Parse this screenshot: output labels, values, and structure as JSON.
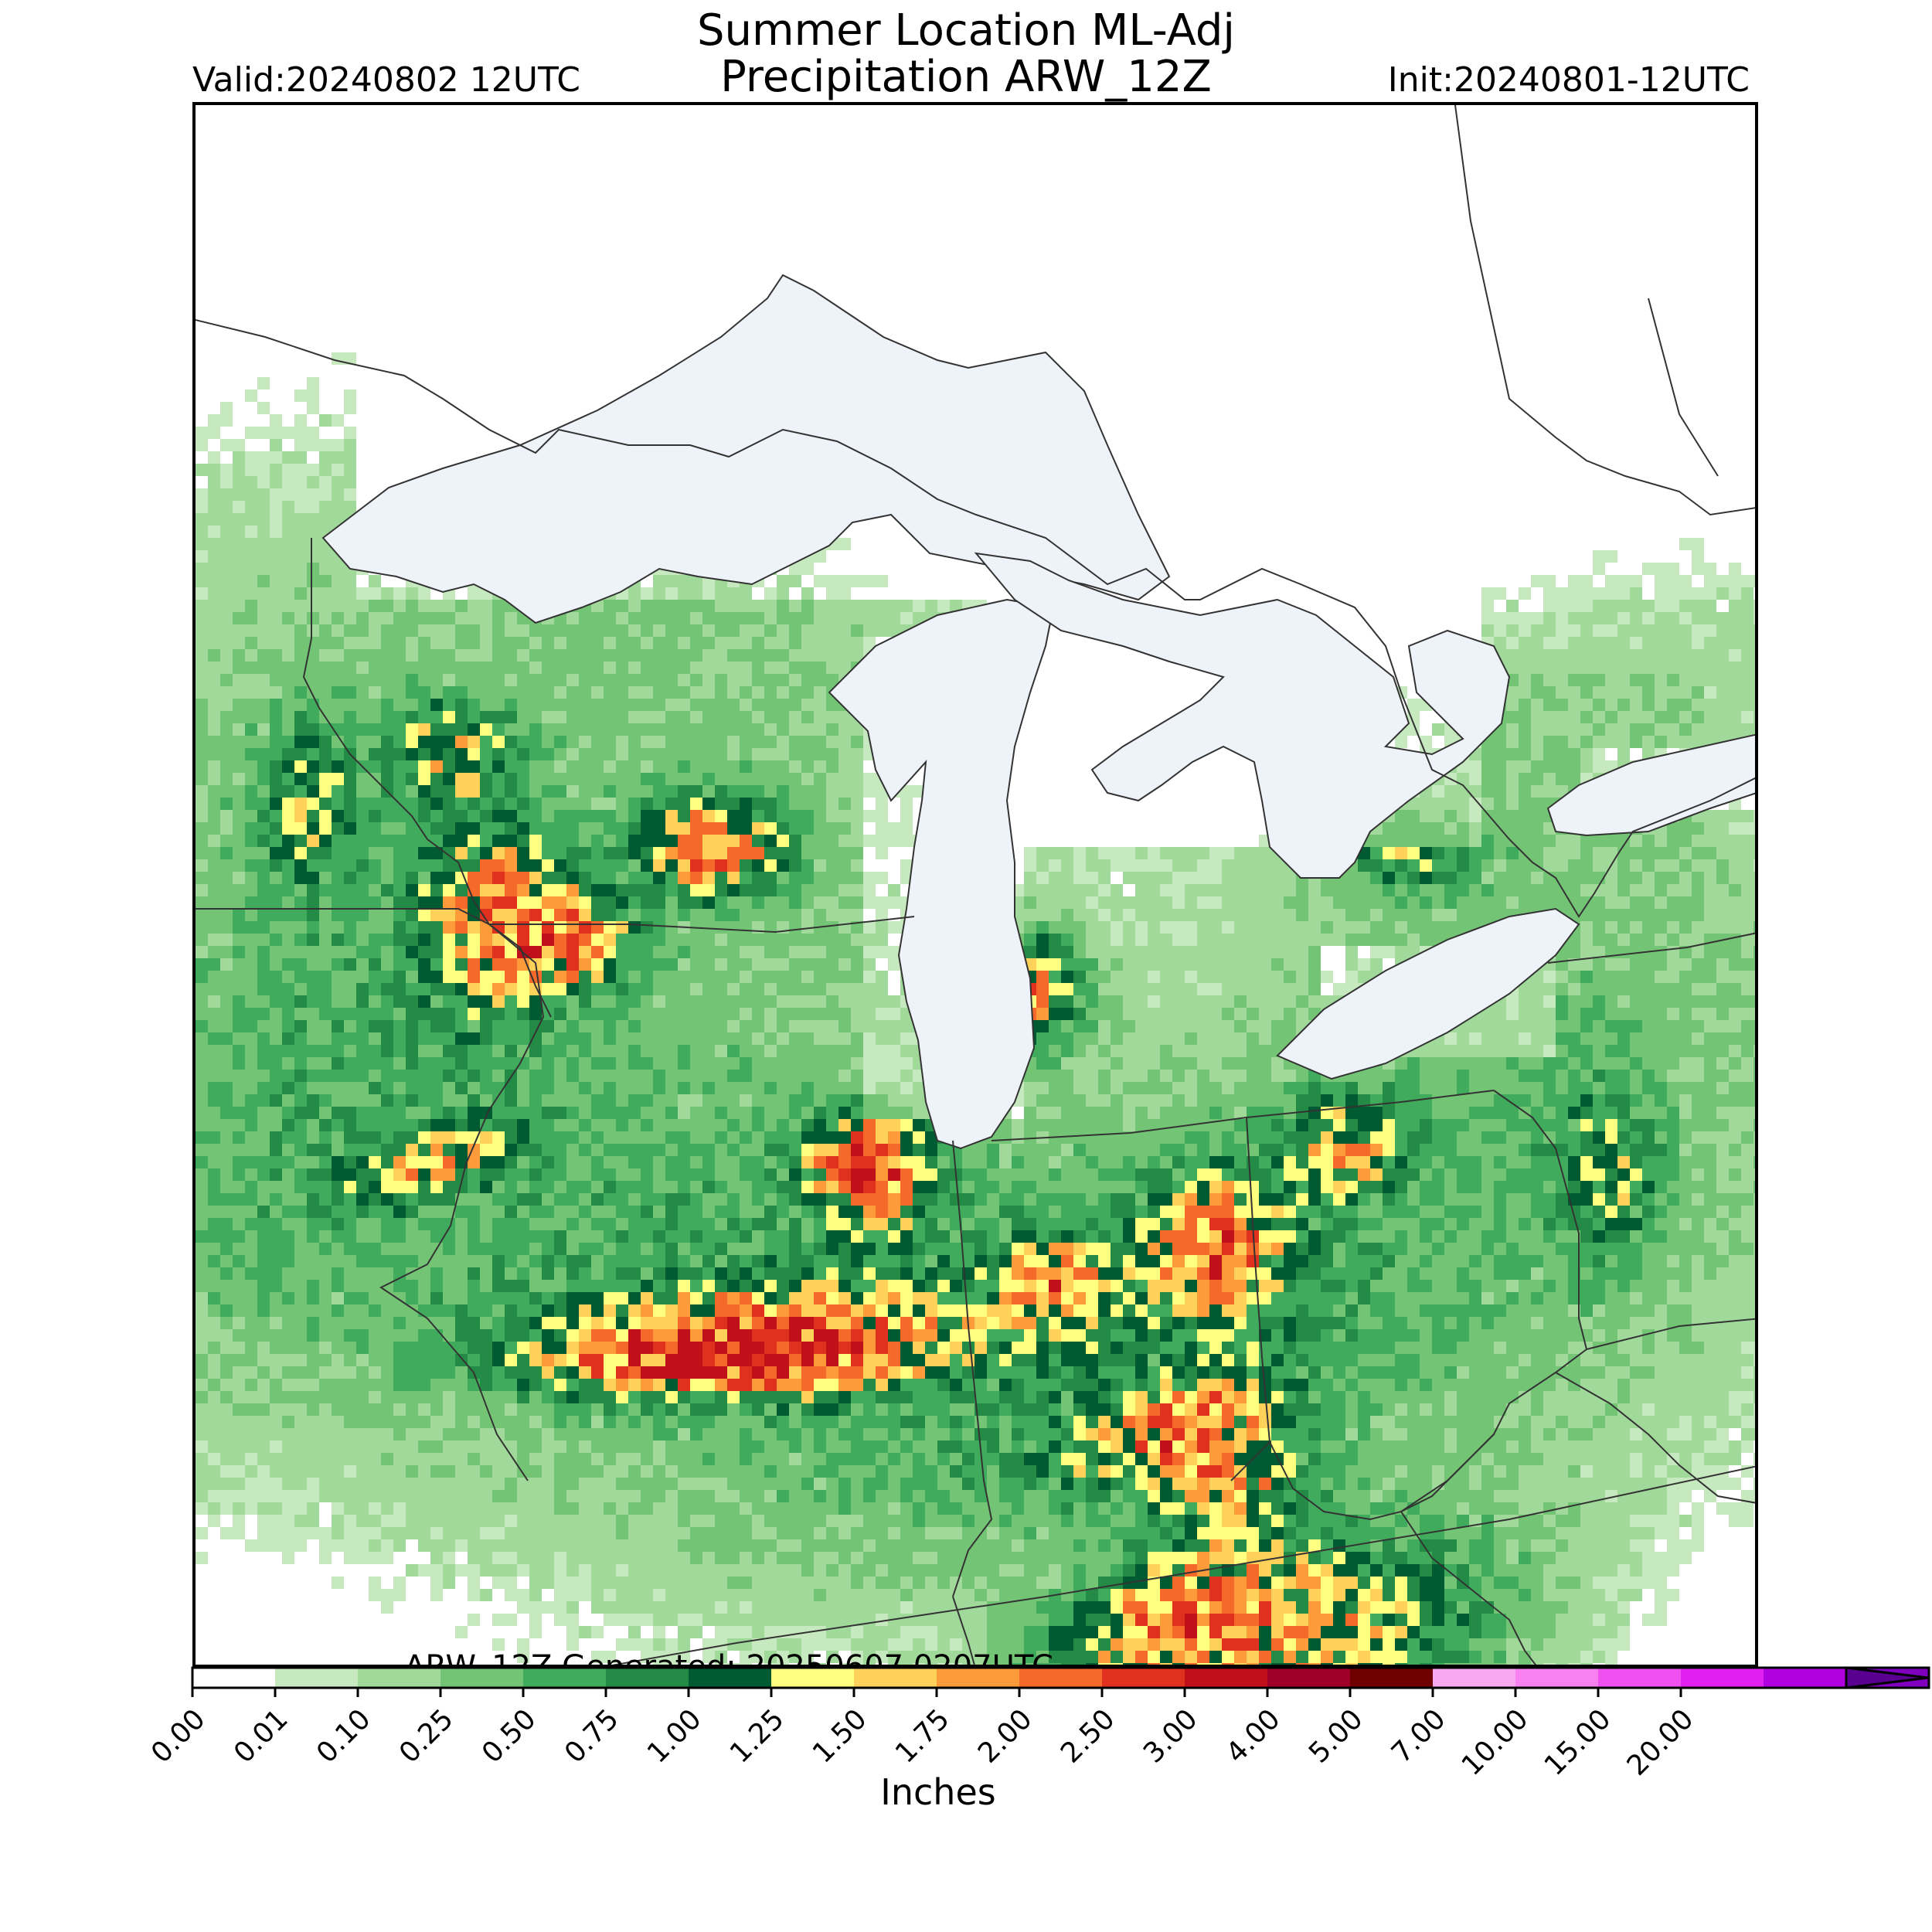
{
  "header": {
    "title_line1": "Summer Location ML-Adj",
    "title_line2": "Precipitation ARW_12Z",
    "valid": "Valid:20240802 12UTC",
    "init": "Init:20240801-12UTC"
  },
  "footer_note": "ARW_12Z Generated: 20250607 0207UTC",
  "colorbar": {
    "unit_label": "Inches",
    "ticks": [
      "0.00",
      "0.01",
      "0.10",
      "0.25",
      "0.50",
      "0.75",
      "1.00",
      "1.25",
      "1.50",
      "1.75",
      "2.00",
      "2.50",
      "3.00",
      "4.00",
      "5.00",
      "7.00",
      "10.00",
      "15.00",
      "20.00"
    ],
    "colors": [
      "#ffffff",
      "#c7e9c0",
      "#a1d99b",
      "#74c476",
      "#41ab5d",
      "#238b45",
      "#005a32",
      "#ffff80",
      "#fdd15a",
      "#fd9a3a",
      "#f56a2a",
      "#e0301e",
      "#c0101a",
      "#a00028",
      "#700000",
      "#f8a8f0",
      "#f880f0",
      "#f050f0",
      "#e020f0",
      "#b000e0",
      "#8000c0"
    ],
    "extend_color": "#5a0090"
  },
  "map_colors": {
    "lake": "#eef2f9",
    "border": "#333333"
  }
}
